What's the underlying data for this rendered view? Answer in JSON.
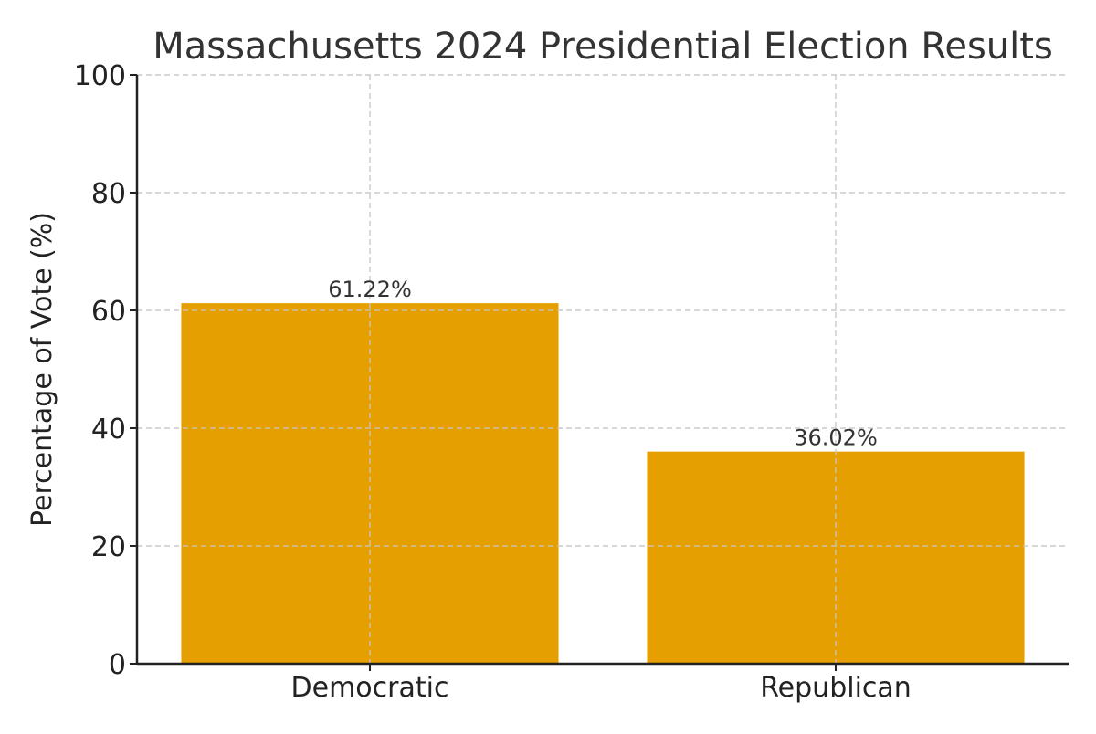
{
  "chart_data": {
    "type": "bar",
    "title": "Massachusetts 2024 Presidential Election Results",
    "xlabel": "",
    "ylabel": "Percentage of Vote (%)",
    "categories": [
      "Democratic",
      "Republican"
    ],
    "values": [
      61.22,
      36.02
    ],
    "data_labels": [
      "61.22%",
      "36.02%"
    ],
    "ylim": [
      0,
      100
    ],
    "yticks": [
      0,
      20,
      40,
      60,
      80,
      100
    ],
    "grid": true,
    "legend": "none",
    "colors": {
      "bar": "#E69F00",
      "grid": "#c8c8c8",
      "axis": "#222222"
    }
  }
}
